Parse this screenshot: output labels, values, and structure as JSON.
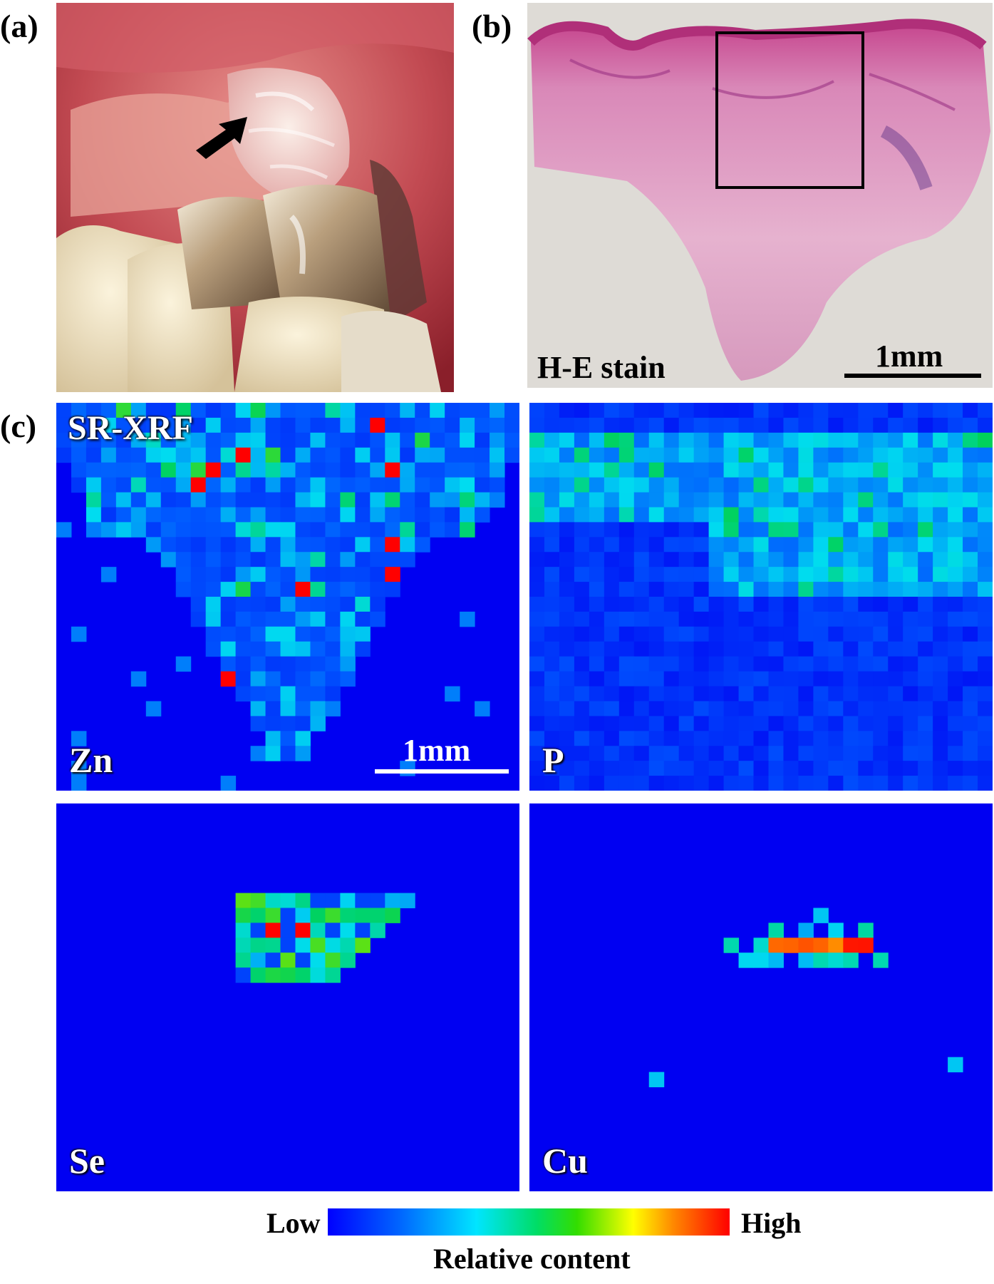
{
  "panel_labels": {
    "a": "(a)",
    "b": "(b)",
    "c": "(c)"
  },
  "photo_b": {
    "stain_label": "H-E stain",
    "scale_label": "1mm"
  },
  "maps": {
    "technique_label": "SR-XRF",
    "zn": {
      "label": "Zn",
      "scale_label": "1mm"
    },
    "p": {
      "label": "P"
    },
    "se": {
      "label": "Se"
    },
    "cu": {
      "label": "Cu"
    }
  },
  "colorbar": {
    "low": "Low",
    "high": "High",
    "caption": "Relative content"
  }
}
